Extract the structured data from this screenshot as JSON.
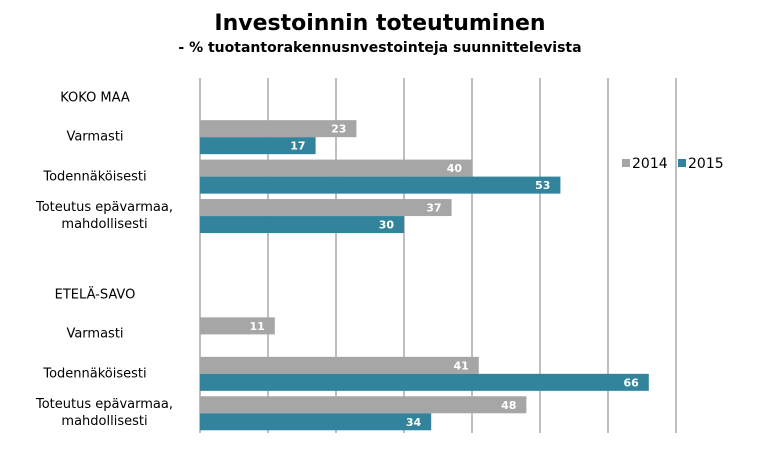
{
  "chart_data": {
    "type": "bar",
    "orientation": "horizontal",
    "title": "Investoinnin toteutuminen",
    "subtitle": "- % tuotantorakennusnvestointeja suunnittelevista",
    "categories": [
      "KOKO MAA",
      "Varmasti",
      "Todennäköisesti",
      "Toteutus epävarmaa, mahdollisesti",
      null,
      "ETELÄ-SAVO",
      "Varmasti",
      "Todennäköisesti",
      "Toteutus epävarmaa, mahdollisesti"
    ],
    "series": [
      {
        "name": "2014",
        "color": "#a6a6a6",
        "values": [
          null,
          23,
          40,
          37,
          null,
          null,
          11,
          41,
          48
        ]
      },
      {
        "name": "2015",
        "color": "#31849b",
        "values": [
          null,
          17,
          53,
          30,
          null,
          null,
          null,
          66,
          34
        ]
      }
    ],
    "xlim": [
      0,
      70
    ],
    "xticks": [
      0,
      10,
      20,
      30,
      40,
      50,
      60,
      70
    ],
    "grid": true,
    "legend": "right"
  }
}
